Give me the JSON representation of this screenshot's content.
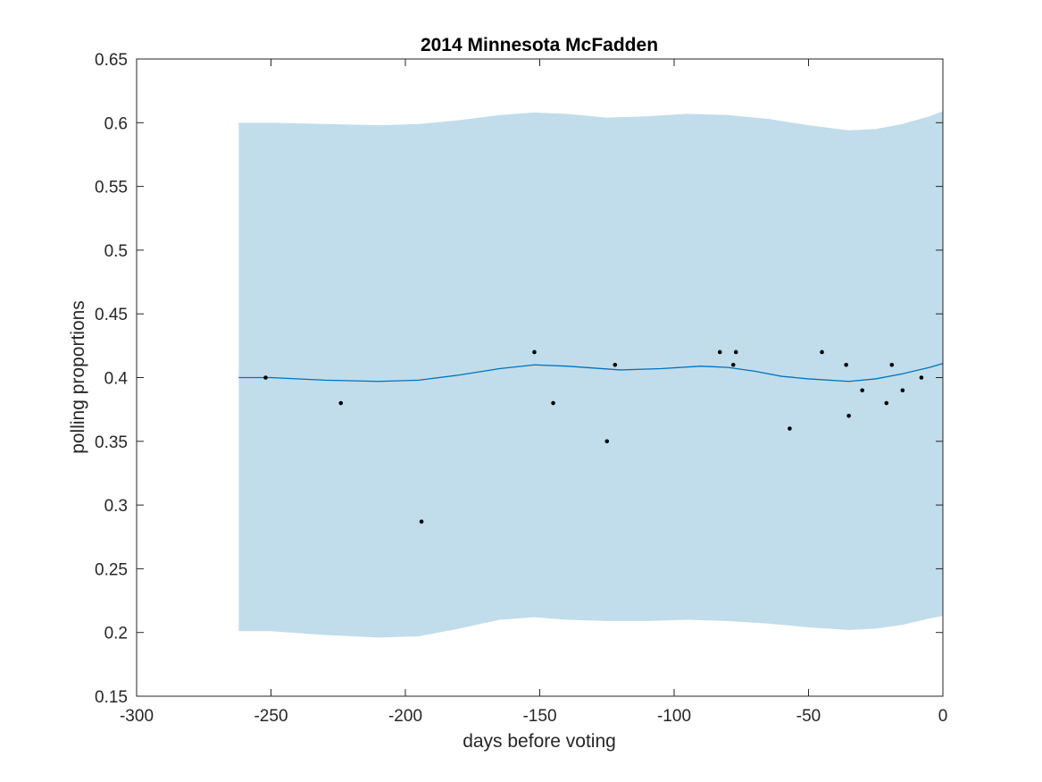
{
  "chart_data": {
    "type": "line",
    "title": "2014 Minnesota McFadden",
    "xlabel": "days before voting",
    "ylabel": "polling proportions",
    "xlim": [
      -300,
      0
    ],
    "ylim": [
      0.15,
      0.65
    ],
    "xticks": [
      -300,
      -250,
      -200,
      -150,
      -100,
      -50,
      0
    ],
    "yticks": [
      0.15,
      0.2,
      0.25,
      0.3,
      0.35,
      0.4,
      0.45,
      0.5,
      0.55,
      0.6,
      0.65
    ],
    "grid": false,
    "legend": "none",
    "colors": {
      "band": "#c1ddeb",
      "trend": "#0072bd",
      "points": "#000000",
      "axes": "#262626"
    },
    "trend": {
      "x": [
        -262,
        -250,
        -230,
        -210,
        -195,
        -180,
        -165,
        -152,
        -140,
        -120,
        -105,
        -90,
        -80,
        -70,
        -60,
        -50,
        -35,
        -25,
        -15,
        -5,
        0
      ],
      "y": [
        0.4,
        0.4,
        0.398,
        0.397,
        0.398,
        0.402,
        0.407,
        0.41,
        0.409,
        0.406,
        0.407,
        0.409,
        0.408,
        0.405,
        0.401,
        0.399,
        0.397,
        0.399,
        0.403,
        0.408,
        0.411
      ]
    },
    "band_upper": {
      "x": [
        -262,
        -250,
        -230,
        -210,
        -195,
        -180,
        -165,
        -152,
        -140,
        -125,
        -110,
        -95,
        -80,
        -65,
        -50,
        -35,
        -25,
        -15,
        -5,
        0
      ],
      "y": [
        0.6,
        0.6,
        0.599,
        0.598,
        0.599,
        0.602,
        0.606,
        0.608,
        0.607,
        0.604,
        0.605,
        0.607,
        0.606,
        0.603,
        0.598,
        0.594,
        0.595,
        0.599,
        0.605,
        0.609
      ]
    },
    "band_lower": {
      "x": [
        -262,
        -250,
        -230,
        -210,
        -195,
        -180,
        -165,
        -152,
        -140,
        -125,
        -110,
        -95,
        -80,
        -65,
        -50,
        -35,
        -25,
        -15,
        -5,
        0
      ],
      "y": [
        0.201,
        0.201,
        0.198,
        0.196,
        0.197,
        0.203,
        0.21,
        0.212,
        0.21,
        0.209,
        0.209,
        0.21,
        0.209,
        0.207,
        0.204,
        0.202,
        0.203,
        0.206,
        0.211,
        0.213
      ]
    },
    "points": {
      "x": [
        -252,
        -224,
        -194,
        -152,
        -145,
        -125,
        -122,
        -83,
        -78,
        -77,
        -57,
        -45,
        -36,
        -35,
        -30,
        -21,
        -19,
        -15,
        -8
      ],
      "y": [
        0.4,
        0.38,
        0.287,
        0.42,
        0.38,
        0.35,
        0.41,
        0.42,
        0.41,
        0.42,
        0.36,
        0.42,
        0.41,
        0.37,
        0.39,
        0.38,
        0.41,
        0.39,
        0.4
      ]
    }
  }
}
